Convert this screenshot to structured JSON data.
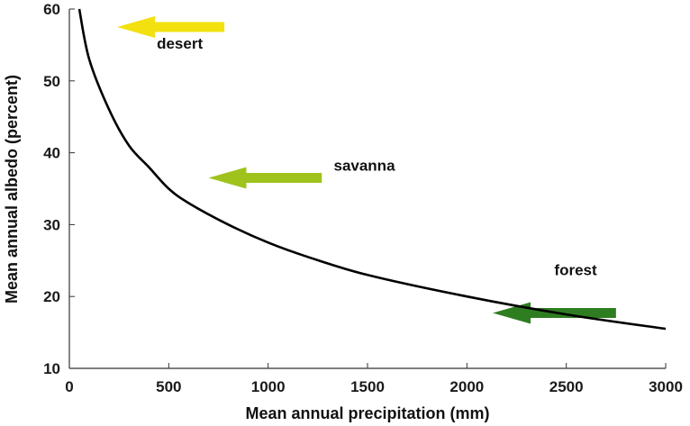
{
  "chart_data": {
    "type": "line",
    "xlabel": "Mean annual precipitation (mm)",
    "ylabel": "Mean annual albedo (percent)",
    "xlim": [
      0,
      3000
    ],
    "ylim": [
      10,
      60
    ],
    "x_ticks": [
      0,
      500,
      1000,
      1500,
      2000,
      2500,
      3000
    ],
    "y_ticks": [
      10,
      20,
      30,
      40,
      50,
      60
    ],
    "grid": false,
    "series": [
      {
        "color": "#000000",
        "points": [
          {
            "x": 50,
            "y": 60
          },
          {
            "x": 100,
            "y": 53
          },
          {
            "x": 200,
            "y": 46
          },
          {
            "x": 300,
            "y": 41
          },
          {
            "x": 400,
            "y": 38
          },
          {
            "x": 500,
            "y": 35
          },
          {
            "x": 600,
            "y": 33
          },
          {
            "x": 800,
            "y": 30
          },
          {
            "x": 1000,
            "y": 27.5
          },
          {
            "x": 1200,
            "y": 25.5
          },
          {
            "x": 1500,
            "y": 23
          },
          {
            "x": 2000,
            "y": 20
          },
          {
            "x": 2500,
            "y": 17.5
          },
          {
            "x": 3000,
            "y": 15.5
          }
        ]
      }
    ],
    "annotations": [
      {
        "text": "desert",
        "color": "#f2e10f",
        "arrow_tail": {
          "x": 780,
          "y": 57.5
        },
        "arrow_head": {
          "x": 240,
          "y": 57.5
        },
        "label_pos": {
          "x": 440,
          "y": 54.5
        }
      },
      {
        "text": "savanna",
        "color": "#9fc31c",
        "arrow_tail": {
          "x": 1270,
          "y": 36.5
        },
        "arrow_head": {
          "x": 700,
          "y": 36.5
        },
        "label_pos": {
          "x": 1330,
          "y": 37.5
        }
      },
      {
        "text": "forest",
        "color": "#2e7d21",
        "arrow_tail": {
          "x": 2750,
          "y": 17.7
        },
        "arrow_head": {
          "x": 2130,
          "y": 17.7
        },
        "label_pos": {
          "x": 2440,
          "y": 23
        }
      }
    ]
  }
}
